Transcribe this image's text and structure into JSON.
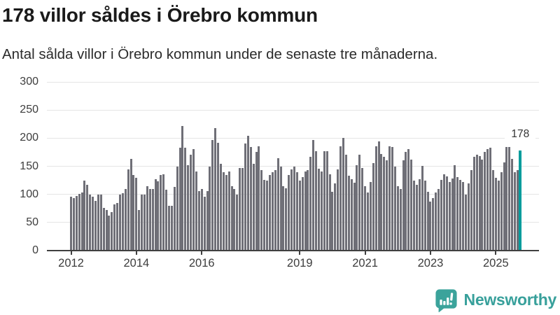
{
  "header": {
    "title": "178 villor såldes i Örebro kommun",
    "subtitle": "Antal sålda villor i Örebro kommun under de senaste tre månaderna."
  },
  "chart_data": {
    "type": "bar",
    "title": "178 villor såldes i Örebro kommun",
    "ylabel": "",
    "xlabel": "",
    "x_start": "2012-01",
    "x_freq": "monthly",
    "x_tick_years": [
      2012,
      2014,
      2016,
      2019,
      2021,
      2023,
      2025
    ],
    "x_tick_labels": [
      "2012",
      "2014",
      "2016",
      "2019",
      "2021",
      "2023",
      "2025"
    ],
    "y_ticks": [
      0,
      50,
      100,
      150,
      200,
      250,
      300
    ],
    "ylim": [
      0,
      300
    ],
    "grid": true,
    "legend": "none",
    "bar_color": "#6f6f77",
    "highlight_color": "#009c9c",
    "axis_color": "#404040",
    "grid_color": "#e4e4e4",
    "annotation": {
      "label": "178",
      "value": 178,
      "position": "last-bar"
    },
    "values": [
      96,
      94,
      97,
      101,
      103,
      125,
      117,
      99,
      96,
      88,
      99,
      99,
      76,
      72,
      62,
      68,
      82,
      85,
      99,
      102,
      109,
      144,
      163,
      134,
      129,
      72,
      99,
      99,
      115,
      110,
      110,
      127,
      123,
      134,
      136,
      108,
      80,
      80,
      113,
      150,
      183,
      222,
      183,
      152,
      171,
      181,
      141,
      106,
      109,
      96,
      106,
      150,
      197,
      218,
      192,
      154,
      139,
      135,
      141,
      114,
      110,
      100,
      147,
      147,
      191,
      204,
      184,
      154,
      175,
      186,
      143,
      126,
      124,
      134,
      139,
      143,
      164,
      150,
      115,
      111,
      135,
      144,
      150,
      139,
      125,
      131,
      141,
      143,
      167,
      197,
      177,
      146,
      141,
      177,
      177,
      136,
      105,
      120,
      145,
      185,
      200,
      171,
      133,
      127,
      121,
      152,
      171,
      147,
      115,
      103,
      122,
      156,
      185,
      194,
      172,
      167,
      161,
      186,
      184,
      149,
      115,
      109,
      161,
      175,
      180,
      162,
      125,
      117,
      127,
      151,
      125,
      105,
      87,
      93,
      103,
      109,
      126,
      136,
      132,
      122,
      128,
      152,
      131,
      126,
      122,
      99,
      120,
      143,
      167,
      170,
      168,
      162,
      176,
      181,
      183,
      143,
      130,
      125,
      139,
      157,
      184,
      184,
      163,
      139,
      143,
      178
    ]
  },
  "branding": {
    "logo_text": "Newsworthy",
    "logo_color": "#38a09b",
    "logo_icon": "speech-bubble-bar-chart"
  }
}
